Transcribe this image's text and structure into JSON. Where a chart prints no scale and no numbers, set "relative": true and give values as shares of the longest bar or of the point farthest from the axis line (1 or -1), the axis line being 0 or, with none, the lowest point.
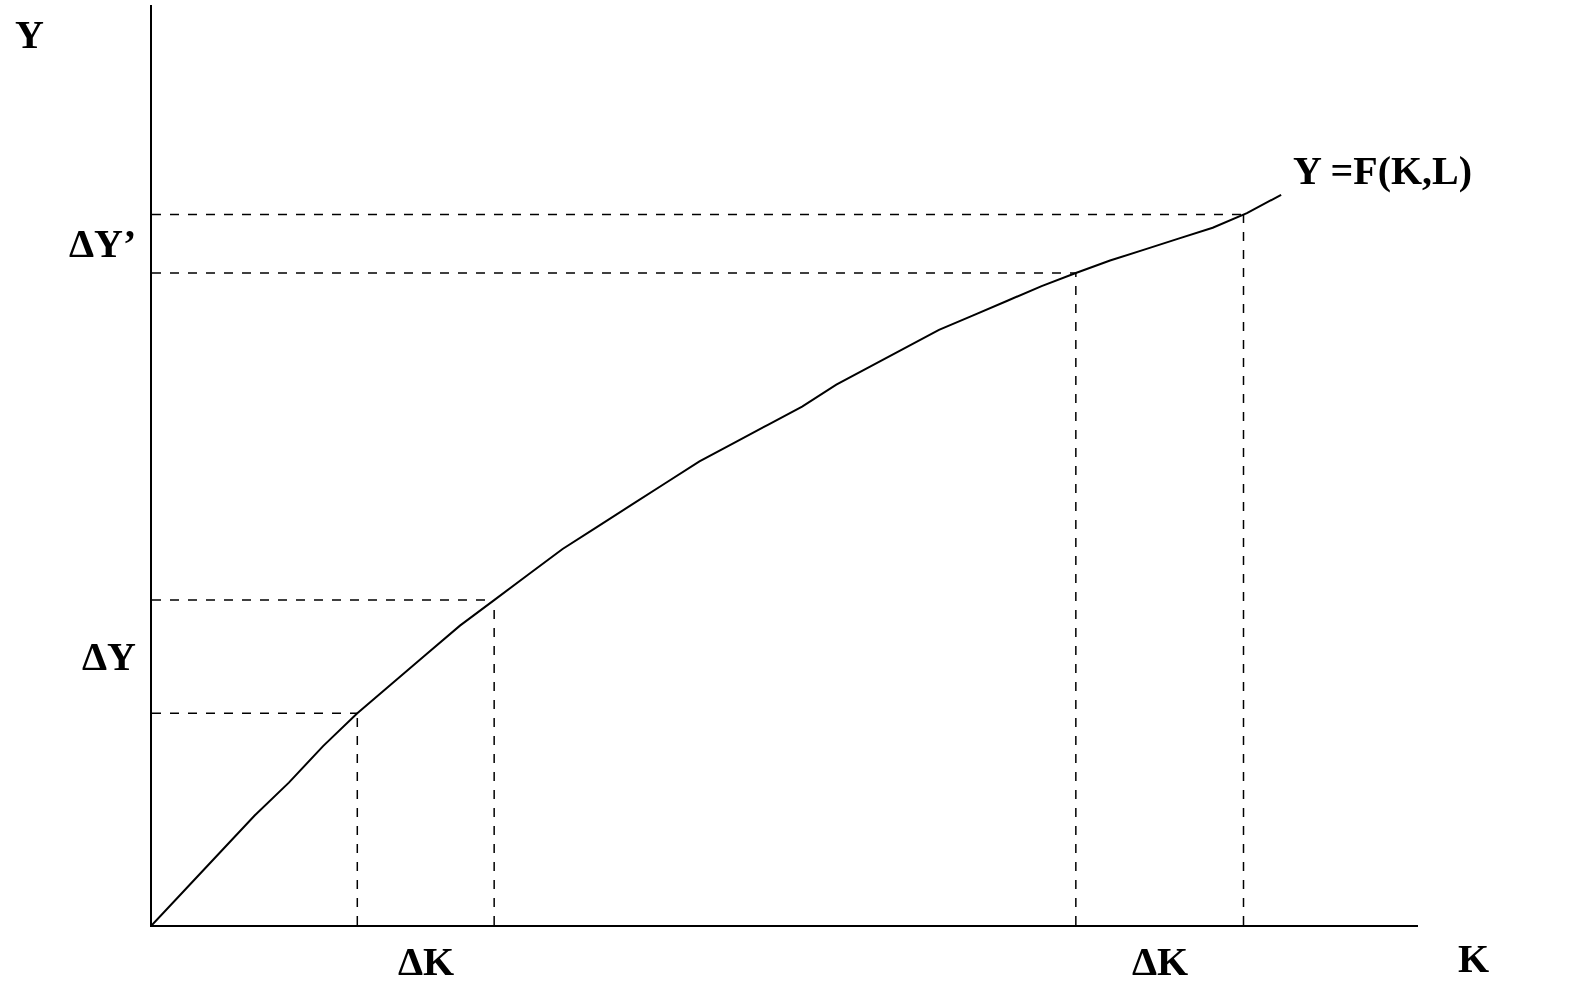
{
  "chart_data": {
    "type": "line",
    "relative": true,
    "xlabel": "K",
    "ylabel": "Y",
    "legend": false,
    "categories": [
      null,
      null,
      null,
      null,
      null,
      null,
      null,
      null,
      null,
      null,
      null,
      null,
      null,
      null,
      null,
      null,
      null,
      null,
      null,
      null,
      null,
      null,
      null,
      null,
      null,
      null,
      null,
      null,
      null,
      null,
      null,
      null,
      null,
      null,
      null,
      null,
      null,
      null
    ],
    "series": [
      {
        "name": "Y =F(K,L)",
        "color": "#000000",
        "values": [
          0,
          0.05,
          0.1,
          0.15,
          0.195,
          0.245,
          0.29,
          0.33,
          0.37,
          0.41,
          0.445,
          0.48,
          0.515,
          0.545,
          0.575,
          0.605,
          0.635,
          0.66,
          0.685,
          0.71,
          0.74,
          0.765,
          0.79,
          0.815,
          0.835,
          0.855,
          0.875,
          0.893,
          0.91,
          0.925,
          0.94,
          0.955,
          0.975,
          1,
          null,
          null,
          null,
          null
        ]
      }
    ],
    "ref_lines": [
      {
        "axis": "y",
        "value": 0.29,
        "color": "#000000",
        "line_style": "dashed"
      },
      {
        "axis": "y",
        "value": 0.445,
        "color": "#000000",
        "line_style": "dashed"
      },
      {
        "axis": "y",
        "value": 0.893,
        "color": "#000000",
        "line_style": "dashed"
      },
      {
        "axis": "y",
        "value": 0.973,
        "color": "#000000",
        "line_style": "dashed"
      }
    ],
    "annotations": [
      "ΔY’",
      "ΔY",
      "ΔK",
      "ΔK"
    ]
  }
}
